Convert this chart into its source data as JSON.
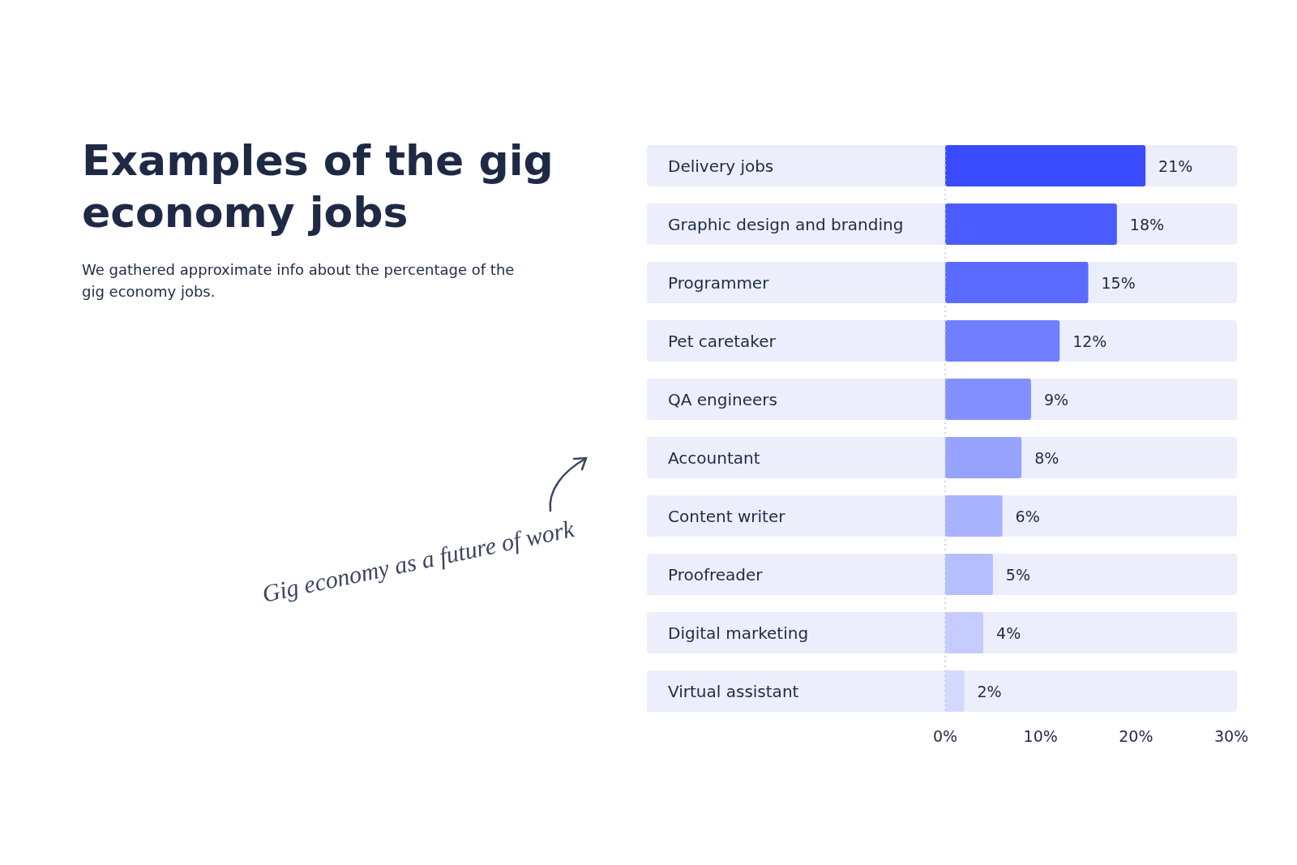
{
  "chart_data": {
    "type": "bar",
    "orientation": "horizontal",
    "title": "Examples of the gig economy jobs",
    "subtitle": "We gathered approximate info about the percentage of the gig economy jobs.",
    "categories": [
      "Delivery jobs",
      "Graphic design and branding",
      "Programmer",
      "Pet caretaker",
      "QA engineers",
      "Accountant",
      "Content writer",
      "Proofreader",
      "Digital marketing",
      "Virtual assistant"
    ],
    "values": [
      21,
      18,
      15,
      12,
      9,
      8,
      6,
      5,
      4,
      2
    ],
    "value_labels": [
      "21%",
      "18%",
      "15%",
      "12%",
      "9%",
      "8%",
      "6%",
      "5%",
      "4%",
      "2%"
    ],
    "colors": [
      "#3a4bff",
      "#4a5bff",
      "#5b6bff",
      "#6f7fff",
      "#8291ff",
      "#96a3ff",
      "#a9b3ff",
      "#b6bfff",
      "#c6ccff",
      "#d3d8ff"
    ],
    "xlim": [
      0,
      30
    ],
    "xticks": [
      {
        "value": 0,
        "label": "0%"
      },
      {
        "value": 10,
        "label": "10%"
      },
      {
        "value": 20,
        "label": "20%"
      },
      {
        "value": 30,
        "label": "30%"
      }
    ],
    "annotations": [
      "Gig economy as a future of work"
    ]
  }
}
